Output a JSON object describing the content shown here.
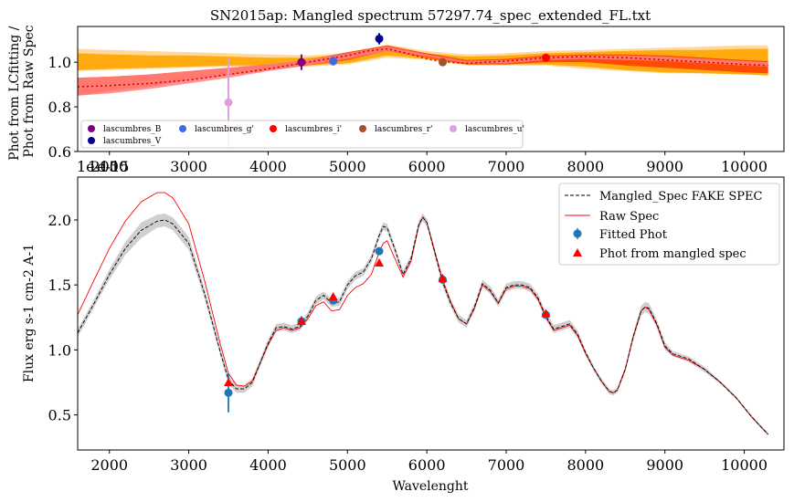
{
  "chart_data": [
    {
      "type": "line",
      "title": "SN2015ap: Mangled spectrum 57297.74_spec_extended_FL.txt",
      "xlabel": "",
      "ylabel": "Phot from LCfitting /\nPhot from Raw Spec",
      "xlim": [
        1600,
        10500
      ],
      "ylim": [
        0.6,
        1.16
      ],
      "xticks": [
        2000,
        3000,
        4000,
        5000,
        6000,
        7000,
        8000,
        9000,
        10000
      ],
      "yticks": [
        0.6,
        0.8,
        1.0
      ],
      "offset_text": "1e-15",
      "legend": {
        "location": "lower-left",
        "columns": 5
      },
      "bands": [
        {
          "name": "outer-band",
          "color": "#ffd591",
          "x": [
            1600,
            2000,
            2500,
            3000,
            3500,
            4000,
            4500,
            5000,
            5500,
            6000,
            6500,
            7000,
            7500,
            8000,
            8500,
            9000,
            9500,
            10000,
            10300
          ],
          "lower": [
            0.96,
            0.965,
            0.97,
            0.975,
            0.98,
            0.98,
            0.98,
            0.99,
            1.02,
            1.01,
            0.985,
            0.985,
            0.985,
            0.97,
            0.96,
            0.95,
            0.95,
            0.95,
            0.945
          ],
          "upper": [
            1.06,
            1.055,
            1.05,
            1.045,
            1.04,
            1.035,
            1.03,
            1.04,
            1.08,
            1.05,
            1.035,
            1.04,
            1.05,
            1.055,
            1.06,
            1.065,
            1.07,
            1.075,
            1.075
          ]
        },
        {
          "name": "middle-band",
          "color": "#ffa500",
          "x": [
            1600,
            2000,
            2500,
            3000,
            3500,
            4000,
            4500,
            5000,
            5500,
            6000,
            6500,
            7000,
            7500,
            8000,
            8500,
            9000,
            9500,
            10000,
            10300
          ],
          "lower": [
            0.965,
            0.97,
            0.975,
            0.98,
            0.985,
            0.985,
            0.985,
            0.995,
            1.03,
            1.015,
            0.99,
            0.99,
            0.99,
            0.98,
            0.965,
            0.955,
            0.95,
            0.945,
            0.94
          ],
          "upper": [
            1.04,
            1.035,
            1.03,
            1.03,
            1.025,
            1.02,
            1.02,
            1.035,
            1.065,
            1.04,
            1.025,
            1.03,
            1.04,
            1.045,
            1.05,
            1.055,
            1.055,
            1.06,
            1.06
          ]
        },
        {
          "name": "red-band",
          "color": "#ff4000",
          "x": [
            1600,
            2000,
            2500,
            3000,
            3500,
            4000,
            4500,
            5000,
            5500,
            6000,
            6500,
            7000,
            7500,
            8000,
            8500,
            9000,
            9500,
            10000,
            10300
          ],
          "lower": [
            0.85,
            0.87,
            0.89,
            0.92,
            0.94,
            0.965,
            0.985,
            1.01,
            1.05,
            1.02,
            0.99,
            0.99,
            1.0,
            1.0,
            0.985,
            0.975,
            0.965,
            0.955,
            0.95
          ],
          "upper": [
            0.93,
            0.935,
            0.945,
            0.96,
            0.975,
            0.99,
            1.01,
            1.045,
            1.075,
            1.04,
            1.01,
            1.015,
            1.03,
            1.035,
            1.035,
            1.03,
            1.02,
            1.01,
            1.005
          ]
        },
        {
          "name": "pink-band",
          "color": "#ff8080",
          "x": [
            1600,
            2000,
            2500,
            3000,
            3500,
            4000,
            4500,
            5000,
            5500,
            6000,
            6500,
            7000,
            7500,
            8000,
            8500,
            9000,
            9500,
            10000,
            10300
          ],
          "lower": [
            0.85,
            0.86,
            0.88,
            0.905,
            0.93,
            0.96,
            0.985,
            1.015,
            1.05,
            1.025,
            0.995,
            0.995,
            1.01,
            1.015,
            1.01,
            1.005,
            0.995,
            0.985,
            0.98
          ],
          "upper": [
            0.93,
            0.935,
            0.945,
            0.96,
            0.975,
            0.99,
            1.01,
            1.04,
            1.07,
            1.035,
            1.005,
            1.01,
            1.025,
            1.03,
            1.03,
            1.025,
            1.015,
            1.005,
            1.0
          ]
        }
      ],
      "ratio_line": {
        "color": "#cc0000",
        "x": [
          1600,
          2000,
          2500,
          3000,
          3500,
          4000,
          4500,
          5000,
          5250,
          5500,
          5750,
          6000,
          6250,
          6500,
          7000,
          7500,
          8000,
          8500,
          9000,
          9500,
          10000,
          10300
        ],
        "y": [
          0.89,
          0.895,
          0.905,
          0.92,
          0.945,
          0.97,
          1.0,
          1.03,
          1.05,
          1.06,
          1.04,
          1.015,
          1.0,
          0.995,
          1.005,
          1.02,
          1.025,
          1.02,
          1.01,
          1.0,
          0.99,
          0.985
        ]
      },
      "series": [
        {
          "name": "lascumbres_B",
          "color": "#800080",
          "x": [
            4420
          ],
          "y": [
            1.0
          ],
          "yerr": [
            0.035
          ]
        },
        {
          "name": "lascumbres_V",
          "color": "#00008b",
          "x": [
            5400
          ],
          "y": [
            1.105
          ],
          "yerr": [
            0.025
          ]
        },
        {
          "name": "lascumbres_g'",
          "color": "#4169e1",
          "x": [
            4820
          ],
          "y": [
            1.005
          ],
          "yerr": [
            0.02
          ]
        },
        {
          "name": "lascumbres_i'",
          "color": "#ff0000",
          "x": [
            7500
          ],
          "y": [
            1.02
          ],
          "yerr": [
            0.01
          ]
        },
        {
          "name": "lascumbres_r'",
          "color": "#a0522d",
          "x": [
            6200
          ],
          "y": [
            1.0
          ],
          "yerr": [
            0.008
          ]
        },
        {
          "name": "lascumbres_u'",
          "color": "#dda0dd",
          "x": [
            3500
          ],
          "y": [
            0.82
          ],
          "yerr": [
            0.2
          ]
        }
      ]
    },
    {
      "type": "line",
      "title": "",
      "xlabel": "Wavelenght",
      "ylabel": "Flux erg s-1 cm-2 A-1",
      "xlim": [
        1600,
        10500
      ],
      "ylim": [
        0.23,
        2.33
      ],
      "xticks": [
        2000,
        3000,
        4000,
        5000,
        6000,
        7000,
        8000,
        9000,
        10000
      ],
      "yticks": [
        0.5,
        1.0,
        1.5,
        2.0
      ],
      "offset_text": "1e-15",
      "legend": {
        "location": "top-right"
      },
      "series": [
        {
          "name": "Mangled_Spec FAKE SPEC",
          "color": "#000000",
          "style": "dashed",
          "x": [
            1600,
            1800,
            2000,
            2200,
            2400,
            2600,
            2700,
            2800,
            3000,
            3200,
            3400,
            3500,
            3600,
            3700,
            3800,
            4000,
            4100,
            4200,
            4300,
            4400,
            4500,
            4600,
            4700,
            4800,
            4900,
            5000,
            5100,
            5200,
            5300,
            5400,
            5450,
            5500,
            5600,
            5700,
            5800,
            5900,
            5950,
            6000,
            6100,
            6200,
            6300,
            6400,
            6500,
            6600,
            6700,
            6800,
            6900,
            7000,
            7100,
            7200,
            7300,
            7400,
            7500,
            7600,
            7700,
            7800,
            7900,
            8000,
            8100,
            8200,
            8300,
            8350,
            8400,
            8500,
            8600,
            8700,
            8750,
            8800,
            8900,
            9000,
            9100,
            9300,
            9500,
            9700,
            9900,
            10100,
            10300
          ],
          "y": [
            1.13,
            1.35,
            1.58,
            1.78,
            1.92,
            1.99,
            2.0,
            1.97,
            1.82,
            1.43,
            0.98,
            0.77,
            0.7,
            0.7,
            0.75,
            1.05,
            1.17,
            1.18,
            1.16,
            1.18,
            1.26,
            1.38,
            1.42,
            1.36,
            1.37,
            1.5,
            1.57,
            1.6,
            1.7,
            1.88,
            1.95,
            1.94,
            1.77,
            1.58,
            1.7,
            1.97,
            2.02,
            1.98,
            1.75,
            1.52,
            1.36,
            1.24,
            1.2,
            1.33,
            1.51,
            1.46,
            1.36,
            1.48,
            1.5,
            1.5,
            1.48,
            1.4,
            1.26,
            1.16,
            1.18,
            1.2,
            1.12,
            0.98,
            0.86,
            0.76,
            0.68,
            0.67,
            0.69,
            0.85,
            1.1,
            1.3,
            1.33,
            1.32,
            1.2,
            1.03,
            0.97,
            0.93,
            0.85,
            0.75,
            0.63,
            0.48,
            0.35
          ]
        },
        {
          "name": "Raw Spec",
          "color": "#ff0000",
          "style": "solid",
          "x": [
            1600,
            1800,
            2000,
            2200,
            2400,
            2600,
            2700,
            2800,
            3000,
            3200,
            3400,
            3500,
            3600,
            3700,
            3800,
            4000,
            4100,
            4200,
            4300,
            4400,
            4500,
            4600,
            4700,
            4800,
            4900,
            5000,
            5100,
            5200,
            5300,
            5400,
            5450,
            5500,
            5600,
            5700,
            5800,
            5900,
            5950,
            6000,
            6100,
            6200,
            6300,
            6400,
            6500,
            6600,
            6700,
            6800,
            6900,
            7000,
            7100,
            7200,
            7300,
            7400,
            7500,
            7600,
            7700,
            7800,
            7900,
            8000,
            8100,
            8200,
            8300,
            8350,
            8400,
            8500,
            8600,
            8700,
            8750,
            8800,
            8900,
            9000,
            9100,
            9300,
            9500,
            9700,
            9900,
            10100,
            10300
          ],
          "y": [
            1.27,
            1.53,
            1.78,
            1.99,
            2.14,
            2.21,
            2.21,
            2.17,
            1.97,
            1.53,
            1.04,
            0.82,
            0.73,
            0.72,
            0.76,
            1.04,
            1.15,
            1.17,
            1.15,
            1.17,
            1.24,
            1.34,
            1.37,
            1.3,
            1.31,
            1.42,
            1.48,
            1.51,
            1.58,
            1.75,
            1.82,
            1.84,
            1.7,
            1.56,
            1.68,
            1.96,
            2.02,
            1.98,
            1.76,
            1.54,
            1.37,
            1.24,
            1.2,
            1.32,
            1.5,
            1.45,
            1.36,
            1.47,
            1.49,
            1.49,
            1.47,
            1.39,
            1.25,
            1.15,
            1.17,
            1.19,
            1.11,
            0.97,
            0.86,
            0.76,
            0.68,
            0.67,
            0.69,
            0.85,
            1.1,
            1.3,
            1.33,
            1.31,
            1.19,
            1.02,
            0.96,
            0.92,
            0.85,
            0.75,
            0.63,
            0.48,
            0.35
          ]
        },
        {
          "name": "Fitted Phot",
          "color": "#1f77b4",
          "style": "errorbar",
          "x": [
            3500,
            4420,
            4820,
            5400,
            6200,
            7500
          ],
          "y": [
            0.67,
            1.22,
            1.38,
            1.76,
            1.54,
            1.27
          ],
          "yerr": [
            0.15,
            0.04,
            0.03,
            0.03,
            0.015,
            0.015
          ]
        },
        {
          "name": "Phot from mangled spec",
          "color": "#ff0000",
          "style": "triangle",
          "x": [
            3500,
            4420,
            4820,
            5400,
            6200,
            7500
          ],
          "y": [
            0.75,
            1.22,
            1.41,
            1.67,
            1.55,
            1.28
          ]
        }
      ],
      "band_halfwidth": [
        0.03,
        0.03,
        0.04,
        0.05,
        0.06,
        0.05,
        0.05,
        0.05,
        0.05,
        0.04,
        0.03,
        0.03,
        0.03,
        0.03,
        0.03,
        0.03,
        0.03,
        0.03,
        0.03,
        0.03,
        0.03,
        0.03,
        0.03,
        0.03,
        0.03,
        0.03,
        0.03,
        0.03,
        0.03,
        0.03,
        0.03,
        0.03,
        0.03,
        0.03,
        0.03,
        0.03,
        0.03,
        0.03,
        0.03,
        0.03,
        0.03,
        0.03,
        0.03,
        0.03,
        0.03,
        0.03,
        0.03,
        0.03,
        0.03,
        0.03,
        0.03,
        0.03,
        0.03,
        0.03,
        0.03,
        0.03,
        0.03,
        0.02,
        0.02,
        0.02,
        0.02,
        0.02,
        0.02,
        0.02,
        0.03,
        0.04,
        0.04,
        0.04,
        0.03,
        0.03,
        0.02,
        0.02,
        0.02,
        0.01,
        0.01,
        0.01,
        0.01
      ]
    }
  ]
}
